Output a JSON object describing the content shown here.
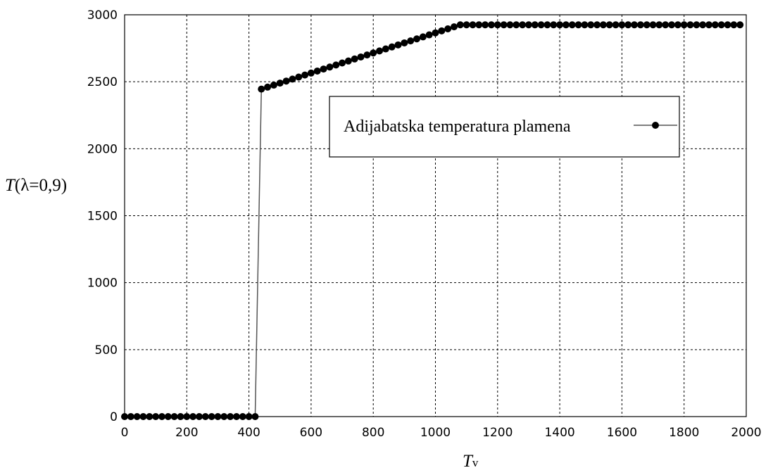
{
  "chart_data": {
    "type": "line",
    "title": "",
    "xlabel": {
      "main": "T",
      "sub": "v"
    },
    "ylabel": {
      "main": "T",
      "rest": "(λ=0,9)"
    },
    "xlim": [
      0,
      2000
    ],
    "ylim": [
      0,
      3000
    ],
    "xticks": [
      0,
      200,
      400,
      600,
      800,
      1000,
      1200,
      1400,
      1600,
      1800,
      2000
    ],
    "yticks": [
      0,
      500,
      1000,
      1500,
      2000,
      2500,
      3000
    ],
    "xtick_labels": [
      "0",
      "200",
      "400",
      "600",
      "800",
      "1000",
      "1200",
      "1400",
      "1600",
      "1800",
      "2000"
    ],
    "ytick_labels": [
      "0",
      "500",
      "1000",
      "1500",
      "2000",
      "2500",
      "3000"
    ],
    "grid": true,
    "legend_position": "upper-right",
    "series": [
      {
        "name": "Adijabatska temperatura plamena",
        "color": "#000000",
        "line_color": "#555555",
        "marker": "circle",
        "x": [
          0,
          20,
          40,
          60,
          80,
          100,
          120,
          140,
          160,
          180,
          200,
          220,
          240,
          260,
          280,
          300,
          320,
          340,
          360,
          380,
          400,
          420,
          440,
          460,
          480,
          500,
          520,
          540,
          560,
          580,
          600,
          620,
          640,
          660,
          680,
          700,
          720,
          740,
          760,
          780,
          800,
          820,
          840,
          860,
          880,
          900,
          920,
          940,
          960,
          980,
          1000,
          1020,
          1040,
          1060,
          1080,
          1100,
          1120,
          1140,
          1160,
          1180,
          1200,
          1220,
          1240,
          1260,
          1280,
          1300,
          1320,
          1340,
          1360,
          1380,
          1400,
          1420,
          1440,
          1460,
          1480,
          1500,
          1520,
          1540,
          1560,
          1580,
          1600,
          1620,
          1640,
          1660,
          1680,
          1700,
          1720,
          1740,
          1760,
          1780,
          1800,
          1820,
          1840,
          1860,
          1880,
          1900,
          1920,
          1940,
          1960,
          1980
        ],
        "y": [
          0,
          0,
          0,
          0,
          0,
          0,
          0,
          0,
          0,
          0,
          0,
          0,
          0,
          0,
          0,
          0,
          0,
          0,
          0,
          0,
          0,
          0,
          2445,
          2460,
          2475,
          2490,
          2505,
          2520,
          2535,
          2550,
          2565,
          2580,
          2595,
          2610,
          2625,
          2640,
          2655,
          2670,
          2685,
          2700,
          2715,
          2730,
          2745,
          2760,
          2775,
          2790,
          2805,
          2820,
          2835,
          2850,
          2865,
          2880,
          2895,
          2910,
          2925,
          2925,
          2925,
          2925,
          2925,
          2925,
          2925,
          2925,
          2925,
          2925,
          2925,
          2925,
          2925,
          2925,
          2925,
          2925,
          2925,
          2925,
          2925,
          2925,
          2925,
          2925,
          2925,
          2925,
          2925,
          2925,
          2925,
          2925,
          2925,
          2925,
          2925,
          2925,
          2925,
          2925,
          2925,
          2925,
          2925,
          2925,
          2925,
          2925,
          2925,
          2925,
          2925,
          2925,
          2925,
          2925
        ]
      }
    ]
  }
}
